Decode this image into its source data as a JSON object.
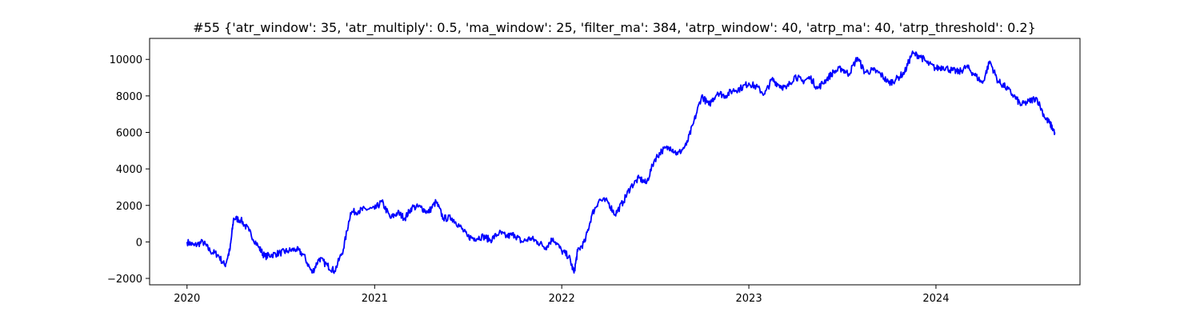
{
  "chart_data": {
    "type": "line",
    "title": "#55 {'atr_window': 35, 'atr_multiply': 0.5, 'ma_window': 25, 'filter_ma': 384, 'atrp_window': 40, 'atrp_ma': 40, 'atrp_threshold': 0.2}",
    "xlabel": "",
    "ylabel": "",
    "x_ticks": [
      "2020",
      "2021",
      "2022",
      "2023",
      "2024"
    ],
    "y_ticks": [
      -2000,
      0,
      2000,
      4000,
      6000,
      8000,
      10000
    ],
    "xlim": [
      "2019-10-20",
      "2024-10-08"
    ],
    "ylim": [
      -2350,
      11150
    ],
    "grid": false,
    "legend": "none",
    "line_color": "#0000ff",
    "series": [
      {
        "x": [
          "2020-01-01",
          "2020-01-15",
          "2020-02-01",
          "2020-02-15",
          "2020-03-01",
          "2020-03-15",
          "2020-03-25",
          "2020-04-01",
          "2020-04-15",
          "2020-05-01",
          "2020-05-20",
          "2020-06-01",
          "2020-06-15",
          "2020-07-01",
          "2020-07-15",
          "2020-08-01",
          "2020-08-15",
          "2020-09-01",
          "2020-09-15",
          "2020-10-01",
          "2020-10-15",
          "2020-11-01",
          "2020-11-15",
          "2020-12-01",
          "2020-12-15",
          "2021-01-01",
          "2021-01-15",
          "2021-02-01",
          "2021-02-15",
          "2021-03-01",
          "2021-03-15",
          "2021-04-01",
          "2021-04-15",
          "2021-05-01",
          "2021-05-15",
          "2021-06-01",
          "2021-06-15",
          "2021-07-01",
          "2021-07-15",
          "2021-08-01",
          "2021-08-15",
          "2021-09-01",
          "2021-09-15",
          "2021-10-01",
          "2021-10-15",
          "2021-11-01",
          "2021-11-15",
          "2021-12-01",
          "2021-12-15",
          "2022-01-01",
          "2022-01-15",
          "2022-01-25",
          "2022-02-01",
          "2022-02-15",
          "2022-03-01",
          "2022-03-15",
          "2022-04-01",
          "2022-04-15",
          "2022-05-01",
          "2022-05-15",
          "2022-06-01",
          "2022-06-15",
          "2022-07-01",
          "2022-07-15",
          "2022-08-01",
          "2022-08-15",
          "2022-09-01",
          "2022-09-15",
          "2022-10-01",
          "2022-10-15",
          "2022-11-01",
          "2022-11-15",
          "2022-12-01",
          "2022-12-15",
          "2023-01-01",
          "2023-01-15",
          "2023-02-01",
          "2023-02-15",
          "2023-03-01",
          "2023-03-15",
          "2023-04-01",
          "2023-04-15",
          "2023-05-01",
          "2023-05-15",
          "2023-06-01",
          "2023-06-15",
          "2023-07-01",
          "2023-07-15",
          "2023-08-01",
          "2023-08-15",
          "2023-09-01",
          "2023-09-15",
          "2023-10-01",
          "2023-10-15",
          "2023-11-01",
          "2023-11-15",
          "2023-12-01",
          "2023-12-15",
          "2024-01-01",
          "2024-01-15",
          "2024-02-01",
          "2024-02-15",
          "2024-03-01",
          "2024-03-15",
          "2024-04-01",
          "2024-04-15",
          "2024-05-01",
          "2024-05-15",
          "2024-06-01",
          "2024-06-15",
          "2024-07-01",
          "2024-07-15",
          "2024-08-01",
          "2024-08-10",
          "2024-08-20"
        ],
        "values": [
          0,
          -200,
          0,
          -500,
          -700,
          -1300,
          -400,
          1300,
          1200,
          600,
          -300,
          -800,
          -700,
          -600,
          -500,
          -400,
          -700,
          -1700,
          -900,
          -1300,
          -1600,
          -400,
          1600,
          1700,
          1800,
          1800,
          2200,
          1300,
          1600,
          1300,
          1900,
          1900,
          1600,
          2200,
          1300,
          1300,
          900,
          300,
          200,
          300,
          100,
          500,
          300,
          400,
          0,
          200,
          0,
          -300,
          200,
          -500,
          -800,
          -1700,
          -500,
          0,
          1500,
          2300,
          2200,
          1500,
          2200,
          3000,
          3500,
          3200,
          4500,
          5000,
          5200,
          4800,
          5300,
          6500,
          8000,
          7500,
          8200,
          8000,
          8300,
          8400,
          8700,
          8500,
          8100,
          8900,
          8600,
          8400,
          9100,
          8800,
          9000,
          8400,
          8900,
          9300,
          9500,
          9200,
          10100,
          9300,
          9400,
          9200,
          8700,
          8900,
          9300,
          10300,
          10200,
          9800,
          9500,
          9600,
          9400,
          9300,
          9600,
          9200,
          8700,
          9900,
          8800,
          8500,
          8000,
          7500,
          7700,
          7900,
          6800,
          6500,
          6000
        ]
      }
    ]
  }
}
